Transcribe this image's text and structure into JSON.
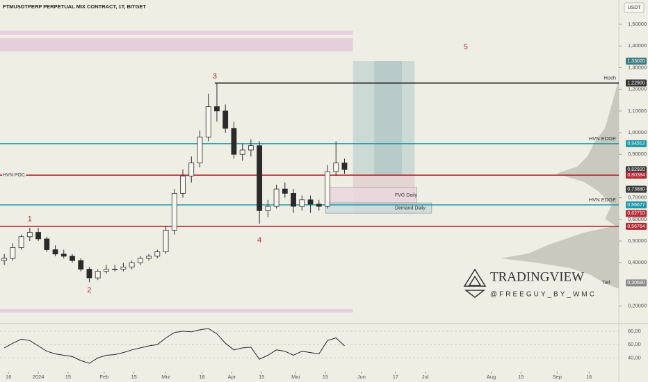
{
  "chart_data": {
    "type": "candlestick",
    "title": "FTMUSDTPERP PERPETUAL MIX CONTRACT, 1T, BITGET",
    "currency": "USDT",
    "up_color": "#f7f6f0",
    "down_color": "#2a2a2a",
    "x": [
      "2023-12-16",
      "2023-12-20",
      "2023-12-24",
      "2023-12-28",
      "2024-01-01",
      "2024-01-05",
      "2024-01-09",
      "2024-01-13",
      "2024-01-17",
      "2024-01-21",
      "2024-01-25",
      "2024-01-29",
      "2024-02-02",
      "2024-02-06",
      "2024-02-10",
      "2024-02-14",
      "2024-02-18",
      "2024-02-22",
      "2024-02-26",
      "2024-03-01",
      "2024-03-05",
      "2024-03-09",
      "2024-03-13",
      "2024-03-17",
      "2024-03-21",
      "2024-03-25",
      "2024-03-29",
      "2024-04-02",
      "2024-04-06",
      "2024-04-10",
      "2024-04-14",
      "2024-04-18",
      "2024-04-22",
      "2024-04-26",
      "2024-04-30",
      "2024-05-04",
      "2024-05-08",
      "2024-05-12",
      "2024-05-16",
      "2024-05-20",
      "2024-05-24"
    ],
    "open": [
      0.41,
      0.42,
      0.47,
      0.52,
      0.54,
      0.51,
      0.46,
      0.44,
      0.43,
      0.41,
      0.37,
      0.33,
      0.36,
      0.37,
      0.37,
      0.38,
      0.4,
      0.42,
      0.43,
      0.45,
      0.55,
      0.72,
      0.8,
      0.86,
      0.98,
      1.12,
      1.1,
      1.02,
      0.9,
      0.92,
      0.94,
      0.64,
      0.66,
      0.74,
      0.72,
      0.66,
      0.69,
      0.67,
      0.66,
      0.82,
      0.86
    ],
    "high": [
      0.44,
      0.49,
      0.53,
      0.56,
      0.56,
      0.52,
      0.48,
      0.46,
      0.44,
      0.42,
      0.38,
      0.37,
      0.39,
      0.39,
      0.4,
      0.41,
      0.43,
      0.44,
      0.46,
      0.57,
      0.74,
      0.83,
      0.89,
      1.01,
      1.18,
      1.229,
      1.13,
      1.05,
      0.95,
      0.97,
      0.96,
      0.69,
      0.76,
      0.77,
      0.74,
      0.71,
      0.71,
      0.69,
      0.85,
      0.96,
      0.88
    ],
    "low": [
      0.39,
      0.41,
      0.46,
      0.5,
      0.5,
      0.45,
      0.43,
      0.42,
      0.4,
      0.36,
      0.31,
      0.32,
      0.35,
      0.36,
      0.36,
      0.37,
      0.39,
      0.41,
      0.42,
      0.44,
      0.53,
      0.7,
      0.77,
      0.84,
      0.96,
      1.05,
      1.0,
      0.88,
      0.87,
      0.89,
      0.58,
      0.61,
      0.65,
      0.7,
      0.63,
      0.64,
      0.63,
      0.64,
      0.65,
      0.8,
      0.81
    ],
    "close": [
      0.42,
      0.47,
      0.52,
      0.54,
      0.51,
      0.46,
      0.44,
      0.43,
      0.41,
      0.37,
      0.33,
      0.36,
      0.37,
      0.37,
      0.38,
      0.4,
      0.42,
      0.43,
      0.45,
      0.55,
      0.72,
      0.8,
      0.86,
      0.98,
      1.12,
      1.1,
      1.02,
      0.9,
      0.92,
      0.94,
      0.64,
      0.66,
      0.74,
      0.72,
      0.66,
      0.69,
      0.67,
      0.66,
      0.82,
      0.86,
      0.83
    ],
    "xlim": [
      "2023-12-14",
      "2024-09-30"
    ],
    "xticks": [
      {
        "value": "2023-12-18",
        "label": "18"
      },
      {
        "value": "2024-01-01",
        "label": "2024"
      },
      {
        "value": "2024-01-15",
        "label": "15"
      },
      {
        "value": "2024-02-01",
        "label": "Feb"
      },
      {
        "value": "2024-02-15",
        "label": "15"
      },
      {
        "value": "2024-03-01",
        "label": "Mrz"
      },
      {
        "value": "2024-03-18",
        "label": "18"
      },
      {
        "value": "2024-04-01",
        "label": "Apr"
      },
      {
        "value": "2024-04-15",
        "label": "15"
      },
      {
        "value": "2024-05-01",
        "label": "Mai"
      },
      {
        "value": "2024-05-15",
        "label": "15"
      },
      {
        "value": "2024-06-01",
        "label": "Jun"
      },
      {
        "value": "2024-06-17",
        "label": "17"
      },
      {
        "value": "2024-07-01",
        "label": "Jul"
      },
      {
        "value": "2024-08-01",
        "label": "Aug"
      },
      {
        "value": "2024-08-15",
        "label": "15"
      },
      {
        "value": "2024-09-01",
        "label": "Sep"
      },
      {
        "value": "2024-09-16",
        "label": "16"
      }
    ],
    "ylim": [
      0.122,
      1.612
    ],
    "yticks": [
      {
        "value": 1.5,
        "label": "1,50000"
      },
      {
        "value": 1.4,
        "label": "1,40000"
      },
      {
        "value": 1.3,
        "label": "1,30000"
      },
      {
        "value": 1.2,
        "label": "1,20000"
      },
      {
        "value": 1.1,
        "label": "1,10000"
      },
      {
        "value": 1.0,
        "label": "1,00000"
      },
      {
        "value": 0.9,
        "label": "0,90000"
      },
      {
        "value": 0.7,
        "label": "0,70000"
      },
      {
        "value": 0.6,
        "label": "0,60000"
      },
      {
        "value": 0.5,
        "label": "0,50000"
      },
      {
        "value": 0.4,
        "label": "0,40000"
      },
      {
        "value": 0.2,
        "label": "0,20000"
      }
    ],
    "zones": [
      {
        "from": "2023-12-14",
        "to": "2024-05-28",
        "ylim": [
          1.452,
          1.471
        ],
        "color": "#e3c9dc"
      },
      {
        "from": "2023-12-14",
        "to": "2024-05-28",
        "ylim": [
          1.375,
          1.436
        ],
        "color": "#e3c9dc"
      },
      {
        "from": "2023-12-14",
        "to": "2024-05-28",
        "ylim": [
          0.17,
          0.186
        ],
        "color": "#e3c9dc"
      },
      {
        "from": "2024-05-28",
        "to": "2024-06-26",
        "ylim": [
          0.80384,
          1.3302
        ],
        "color": "#c5d6d3"
      },
      {
        "from": "2024-06-07",
        "to": "2024-06-20",
        "ylim": [
          0.80384,
          1.3302
        ],
        "color": "#b4c8c5"
      },
      {
        "from": "2024-05-28",
        "to": "2024-06-26",
        "ylim": [
          0.6271,
          0.80384
        ],
        "color": "#e2cfcf"
      },
      {
        "from": "2024-05-15",
        "to": "2024-06-27",
        "ylim": [
          0.676,
          0.747
        ],
        "color": "#ead7de",
        "label": "FVG Daily"
      },
      {
        "from": "2024-05-15",
        "to": "2024-07-04",
        "ylim": [
          0.628,
          0.676
        ],
        "color": "#c9dcdc",
        "label": "Demand Daily"
      }
    ],
    "levels": [
      {
        "value": 1.229,
        "color": "#111111",
        "from": "2024-03-24",
        "label": "Hoch"
      },
      {
        "value": 0.94912,
        "color": "#1d98a8",
        "label": "HVN EDGE"
      },
      {
        "value": 0.80384,
        "color": "#b22833",
        "label": "HVN POC",
        "label_side": "left"
      },
      {
        "value": 0.66677,
        "color": "#1d98a8",
        "label": "HVN EDGE"
      },
      {
        "value": 0.56764,
        "color": "#b22833"
      }
    ],
    "price_labels": [
      {
        "value": 1.3302,
        "label": "1,33020",
        "color": "#3c7a80"
      },
      {
        "value": 1.229,
        "label": "1,22900",
        "color": "#333333"
      },
      {
        "value": 0.94912,
        "label": "0,94912",
        "color": "#1d98a8"
      },
      {
        "value": 0.8292,
        "label": "0,82920",
        "color": "#3a3a3a"
      },
      {
        "value": 0.80384,
        "label": "0,80384",
        "color": "#b22833"
      },
      {
        "value": 0.7388,
        "label": "0,73880",
        "color": "#3a3a3a"
      },
      {
        "value": 0.66677,
        "label": "0,66677",
        "color": "#1d98a8"
      },
      {
        "value": 0.6271,
        "label": "0,62710",
        "color": "#b22833"
      },
      {
        "value": 0.56764,
        "label": "0,56764",
        "color": "#b22833"
      },
      {
        "value": 0.3068,
        "label": "0,30680",
        "color": "#8a8a8a"
      }
    ],
    "annotations": [
      {
        "text": "1",
        "x": "2023-12-28",
        "y": 0.6
      },
      {
        "text": "2",
        "x": "2024-01-25",
        "y": 0.273
      },
      {
        "text": "3",
        "x": "2024-03-24",
        "y": 1.26
      },
      {
        "text": "4",
        "x": "2024-04-14",
        "y": 0.503
      },
      {
        "text": "5",
        "x": "2024-07-20",
        "y": 1.394
      },
      {
        "text": "Tief",
        "x": "2024-09-24",
        "y": 0.3068
      }
    ],
    "watermark": {
      "brand": "TRADINGVIEW",
      "handle": "@FREEGUY_BY_WMC"
    },
    "rsi": {
      "color": "#222222",
      "ylim": [
        19.5,
        91.3
      ],
      "values": [
        55,
        62,
        68,
        66,
        58,
        50,
        46,
        44,
        42,
        36,
        32,
        40,
        44,
        45,
        48,
        52,
        55,
        58,
        60,
        70,
        78,
        80,
        79,
        82,
        84,
        76,
        62,
        52,
        55,
        56,
        38,
        44,
        52,
        50,
        44,
        50,
        48,
        46,
        66,
        70,
        58
      ],
      "yticks": [
        {
          "value": 80,
          "label": "80,00"
        },
        {
          "value": 60,
          "label": "60,00"
        },
        {
          "value": 40,
          "label": "40,00"
        }
      ]
    }
  }
}
